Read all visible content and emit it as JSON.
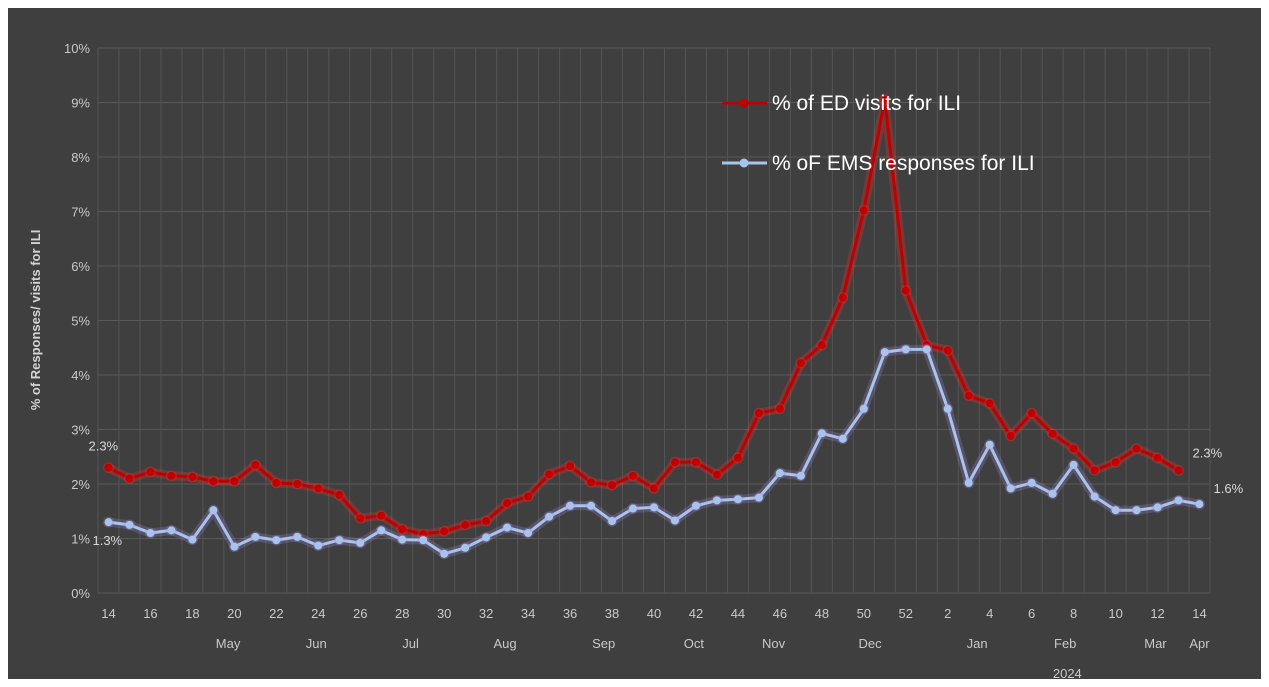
{
  "chart_data": {
    "type": "line",
    "x_weeks": [
      "14",
      "15",
      "16",
      "17",
      "18",
      "19",
      "20",
      "21",
      "22",
      "23",
      "24",
      "25",
      "26",
      "27",
      "28",
      "29",
      "30",
      "31",
      "32",
      "33",
      "34",
      "35",
      "36",
      "37",
      "38",
      "39",
      "40",
      "41",
      "42",
      "43",
      "44",
      "45",
      "46",
      "47",
      "48",
      "49",
      "50",
      "51",
      "52",
      "1",
      "2",
      "3",
      "4",
      "5",
      "6",
      "7",
      "8",
      "9",
      "10",
      "11",
      "12",
      "13",
      "14"
    ],
    "x_tick_labels": [
      "14",
      "16",
      "18",
      "20",
      "22",
      "24",
      "26",
      "28",
      "30",
      "32",
      "34",
      "36",
      "38",
      "40",
      "42",
      "44",
      "46",
      "48",
      "50",
      "52",
      "2",
      "4",
      "6",
      "8",
      "10",
      "12",
      "14"
    ],
    "month_labels": [
      {
        "label": "May",
        "week_index": 5.7
      },
      {
        "label": "Jun",
        "week_index": 9.9
      },
      {
        "label": "Jul",
        "week_index": 14.4
      },
      {
        "label": "Aug",
        "week_index": 18.9
      },
      {
        "label": "Sep",
        "week_index": 23.6
      },
      {
        "label": "Oct",
        "week_index": 27.9
      },
      {
        "label": "Nov",
        "week_index": 31.7
      },
      {
        "label": "Dec",
        "week_index": 36.3
      },
      {
        "label": "Jan",
        "week_index": 41.4
      },
      {
        "label": "Feb",
        "week_index": 45.6
      },
      {
        "label": "Mar",
        "week_index": 49.9
      },
      {
        "label": "Apr",
        "week_index": 52.0
      }
    ],
    "year_label": {
      "label": "2024",
      "week_index": 45.7
    },
    "ylabel": "% of Responses/ visits for ILI",
    "ylim": [
      0,
      10
    ],
    "y_ticks": [
      0,
      1,
      2,
      3,
      4,
      5,
      6,
      7,
      8,
      9,
      10
    ],
    "y_tick_labels": [
      "0%",
      "1%",
      "2%",
      "3%",
      "4%",
      "5%",
      "6%",
      "7%",
      "8%",
      "9%",
      "10%"
    ],
    "grid": true,
    "legend_position": "top-right",
    "series": [
      {
        "name": "% of ED visits for ILI",
        "color": "#c00000",
        "values": [
          2.3,
          2.1,
          2.22,
          2.15,
          2.13,
          2.05,
          2.05,
          2.35,
          2.02,
          2.0,
          1.92,
          1.8,
          1.37,
          1.42,
          1.17,
          1.08,
          1.13,
          1.25,
          1.32,
          1.65,
          1.77,
          2.18,
          2.33,
          2.03,
          1.98,
          2.15,
          1.92,
          2.4,
          2.4,
          2.17,
          2.48,
          3.3,
          3.38,
          4.22,
          4.55,
          5.42,
          7.02,
          9.05,
          5.55,
          4.55,
          4.45,
          3.62,
          3.48,
          2.88,
          3.3,
          2.92,
          2.65,
          2.25,
          2.4,
          2.65,
          2.48,
          2.25
        ],
        "end_labels": {
          "first": "2.3%",
          "last": "2.3%"
        }
      },
      {
        "name": "% oF EMS responses for ILI",
        "color": "#a9c4eb",
        "values": [
          1.3,
          1.25,
          1.1,
          1.15,
          0.98,
          1.52,
          0.85,
          1.03,
          0.97,
          1.03,
          0.87,
          0.97,
          0.92,
          1.15,
          0.98,
          0.97,
          0.72,
          0.83,
          1.02,
          1.2,
          1.1,
          1.4,
          1.6,
          1.6,
          1.32,
          1.55,
          1.57,
          1.33,
          1.6,
          1.7,
          1.72,
          1.75,
          2.2,
          2.15,
          2.93,
          2.83,
          3.38,
          4.42,
          4.47,
          4.47,
          3.38,
          2.02,
          2.72,
          1.92,
          2.02,
          1.82,
          2.35,
          1.77,
          1.52,
          1.52,
          1.57,
          1.7,
          1.63
        ],
        "end_labels": {
          "first": "1.3%",
          "last": "1.6%"
        }
      }
    ]
  }
}
